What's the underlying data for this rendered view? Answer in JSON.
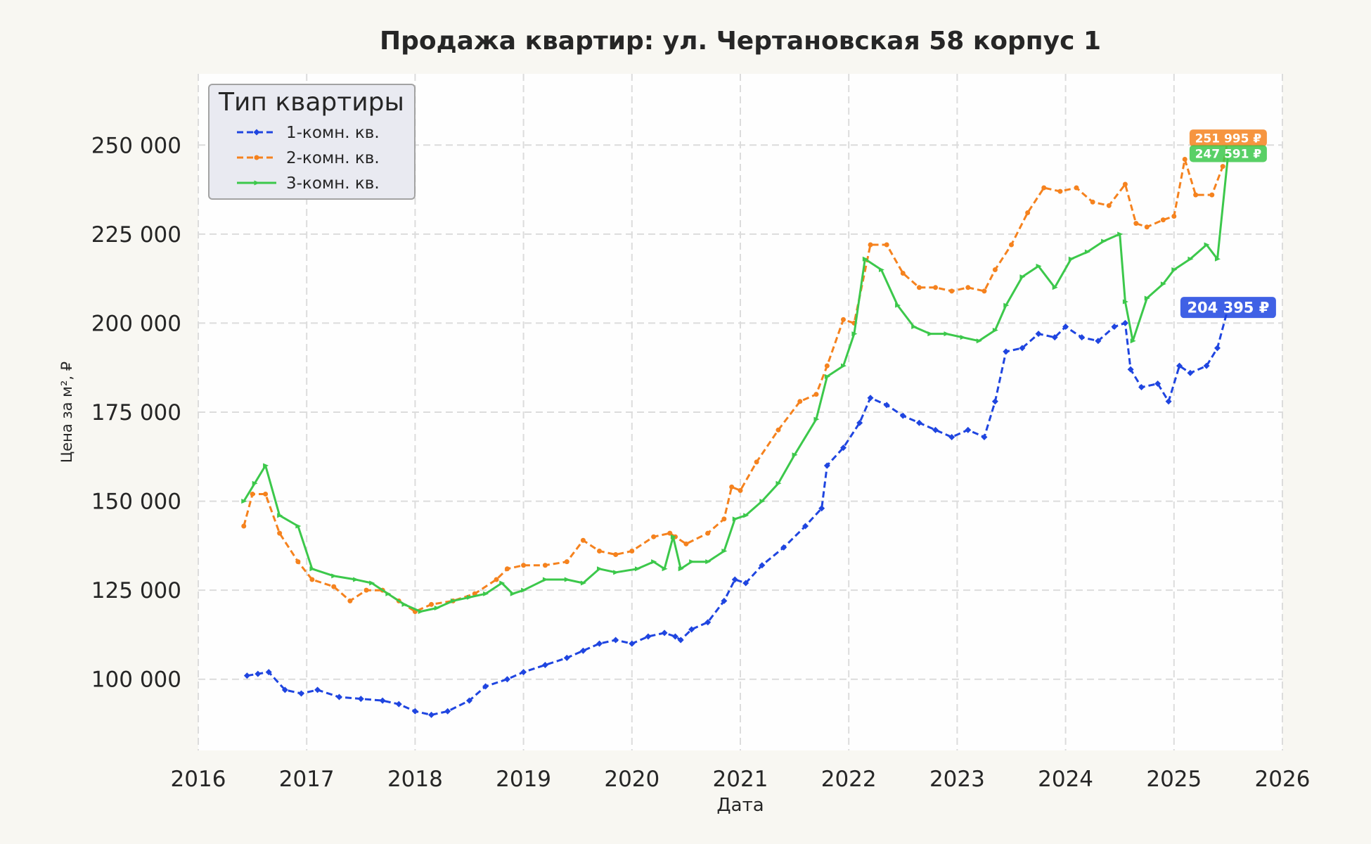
{
  "chart_data": {
    "type": "line",
    "title": "Продажа квартир: ул. Чертановская 58 корпус 1",
    "xlabel": "Дата",
    "ylabel": "Цена за м², ₽",
    "xlim": [
      2016,
      2026
    ],
    "ylim": [
      80000,
      270000
    ],
    "x_ticks": [
      2016,
      2017,
      2018,
      2019,
      2020,
      2021,
      2022,
      2023,
      2024,
      2025,
      2026
    ],
    "x_tick_labels": [
      "2016",
      "2017",
      "2018",
      "2019",
      "2020",
      "2021",
      "2022",
      "2023",
      "2024",
      "2025",
      "2026"
    ],
    "y_ticks": [
      100000,
      125000,
      150000,
      175000,
      200000,
      225000,
      250000
    ],
    "y_tick_labels": [
      "100 000",
      "125 000",
      "150 000",
      "175 000",
      "200 000",
      "225 000",
      "250 000"
    ],
    "grid": true,
    "legend": {
      "title": "Тип квартиры",
      "position": "top-left"
    },
    "colors": {
      "plot_bg": "#fefefe",
      "page_bg": "#f8f7f2",
      "grid": "#dcdcdc"
    },
    "series": [
      {
        "name": "1-комн. кв.",
        "color": "#1f45e0",
        "dash": "dashed",
        "marker": "diamond",
        "last_label": "204 395 ₽",
        "x": [
          2016.45,
          2016.55,
          2016.65,
          2016.8,
          2016.95,
          2017.1,
          2017.3,
          2017.5,
          2017.7,
          2017.85,
          2018.0,
          2018.15,
          2018.3,
          2018.5,
          2018.65,
          2018.85,
          2019.0,
          2019.2,
          2019.4,
          2019.55,
          2019.7,
          2019.85,
          2020.0,
          2020.15,
          2020.3,
          2020.4,
          2020.45,
          2020.55,
          2020.7,
          2020.85,
          2020.95,
          2021.05,
          2021.2,
          2021.4,
          2021.6,
          2021.75,
          2021.8,
          2021.95,
          2022.1,
          2022.2,
          2022.35,
          2022.5,
          2022.65,
          2022.8,
          2022.95,
          2023.1,
          2023.25,
          2023.35,
          2023.45,
          2023.6,
          2023.75,
          2023.9,
          2024.0,
          2024.15,
          2024.3,
          2024.45,
          2024.55,
          2024.6,
          2024.7,
          2024.85,
          2024.95,
          2025.05,
          2025.15,
          2025.3,
          2025.4,
          2025.5
        ],
        "y": [
          101000,
          101500,
          102000,
          97000,
          96000,
          97000,
          95000,
          94500,
          94000,
          93000,
          91000,
          90000,
          91000,
          94000,
          98000,
          100000,
          102000,
          104000,
          106000,
          108000,
          110000,
          111000,
          110000,
          112000,
          113000,
          112000,
          111000,
          114000,
          116000,
          122000,
          128000,
          127000,
          132000,
          137000,
          143000,
          148000,
          160000,
          165000,
          172000,
          179000,
          177000,
          174000,
          172000,
          170000,
          168000,
          170000,
          168000,
          178000,
          192000,
          193000,
          197000,
          196000,
          199000,
          196000,
          195000,
          199000,
          200000,
          187000,
          182000,
          183000,
          178000,
          188000,
          186000,
          188000,
          193000,
          204395
        ]
      },
      {
        "name": "2-комн. кв.",
        "color": "#f5821e",
        "dash": "dashed",
        "marker": "circle",
        "last_label": "251 995 ₽",
        "x": [
          2016.42,
          2016.5,
          2016.62,
          2016.75,
          2016.92,
          2017.05,
          2017.25,
          2017.4,
          2017.55,
          2017.7,
          2017.85,
          2018.0,
          2018.15,
          2018.35,
          2018.55,
          2018.75,
          2018.85,
          2019.0,
          2019.2,
          2019.4,
          2019.55,
          2019.7,
          2019.85,
          2020.0,
          2020.2,
          2020.35,
          2020.4,
          2020.5,
          2020.7,
          2020.85,
          2020.92,
          2021.0,
          2021.15,
          2021.35,
          2021.55,
          2021.7,
          2021.8,
          2021.95,
          2022.05,
          2022.2,
          2022.35,
          2022.5,
          2022.65,
          2022.8,
          2022.95,
          2023.1,
          2023.25,
          2023.35,
          2023.5,
          2023.65,
          2023.8,
          2023.95,
          2024.1,
          2024.25,
          2024.4,
          2024.55,
          2024.65,
          2024.75,
          2024.9,
          2025.0,
          2025.1,
          2025.2,
          2025.35,
          2025.45,
          2025.5
        ],
        "y": [
          143000,
          152000,
          152000,
          141000,
          133000,
          128000,
          126000,
          122000,
          125000,
          125000,
          122000,
          119000,
          121000,
          122000,
          124000,
          128000,
          131000,
          132000,
          132000,
          133000,
          139000,
          136000,
          135000,
          136000,
          140000,
          141000,
          140000,
          138000,
          141000,
          145000,
          154000,
          153000,
          161000,
          170000,
          178000,
          180000,
          188000,
          201000,
          200000,
          222000,
          222000,
          214000,
          210000,
          210000,
          209000,
          210000,
          209000,
          215000,
          222000,
          231000,
          238000,
          237000,
          238000,
          234000,
          233000,
          239000,
          228000,
          227000,
          229000,
          230000,
          246000,
          236000,
          236000,
          244000,
          251995
        ]
      },
      {
        "name": "3-комн. кв.",
        "color": "#3cc84b",
        "dash": "solid",
        "marker": "triangle",
        "last_label": "247 591 ₽",
        "x": [
          2016.42,
          2016.52,
          2016.62,
          2016.75,
          2016.92,
          2017.05,
          2017.25,
          2017.45,
          2017.6,
          2017.75,
          2017.9,
          2018.05,
          2018.2,
          2018.35,
          2018.5,
          2018.65,
          2018.8,
          2018.9,
          2019.0,
          2019.2,
          2019.4,
          2019.55,
          2019.7,
          2019.85,
          2020.05,
          2020.2,
          2020.3,
          2020.38,
          2020.45,
          2020.55,
          2020.7,
          2020.85,
          2020.95,
          2021.05,
          2021.2,
          2021.35,
          2021.5,
          2021.7,
          2021.8,
          2021.95,
          2022.05,
          2022.15,
          2022.3,
          2022.45,
          2022.6,
          2022.75,
          2022.9,
          2023.05,
          2023.2,
          2023.35,
          2023.45,
          2023.6,
          2023.75,
          2023.9,
          2024.05,
          2024.2,
          2024.35,
          2024.5,
          2024.55,
          2024.62,
          2024.75,
          2024.9,
          2025.0,
          2025.15,
          2025.3,
          2025.4,
          2025.5
        ],
        "y": [
          150000,
          155000,
          160000,
          146000,
          143000,
          131000,
          129000,
          128000,
          127000,
          124000,
          121000,
          119000,
          120000,
          122000,
          123000,
          124000,
          127000,
          124000,
          125000,
          128000,
          128000,
          127000,
          131000,
          130000,
          131000,
          133000,
          131000,
          140000,
          131000,
          133000,
          133000,
          136000,
          145000,
          146000,
          150000,
          155000,
          163000,
          173000,
          185000,
          188000,
          197000,
          218000,
          215000,
          205000,
          199000,
          197000,
          197000,
          196000,
          195000,
          198000,
          205000,
          213000,
          216000,
          210000,
          218000,
          220000,
          223000,
          225000,
          206000,
          195000,
          207000,
          211000,
          215000,
          218000,
          222000,
          218000,
          247591
        ]
      }
    ]
  }
}
